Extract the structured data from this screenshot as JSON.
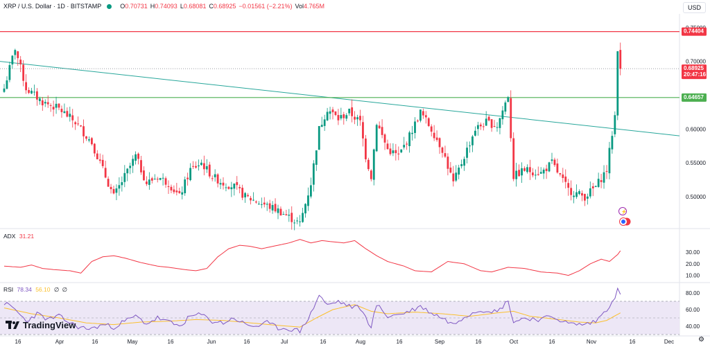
{
  "header": {
    "symbol": "XRP / U.S. Dollar · 1D · BITSTAMP",
    "open_label": "O",
    "open": "0.70731",
    "high_label": "H",
    "high": "0.74093",
    "low_label": "L",
    "low": "0.68081",
    "close_label": "C",
    "close": "0.68925",
    "change": "−0.01561 (−2.21%)",
    "vol_label": "Vol",
    "vol": "4.765M"
  },
  "currency": "USD",
  "colors": {
    "up": "#089981",
    "down": "#f23645",
    "resistance": "#f23645",
    "support": "#4caf50",
    "trendline": "#26a69a",
    "adx": "#f23645",
    "rsi": "#7e57c2",
    "rsi_ma": "#fbc02d",
    "rsi_band": "#ede7f6"
  },
  "chart_data": [
    {
      "type": "candlestick",
      "title": "XRP / U.S. Dollar · 1D · BITSTAMP",
      "ylim": [
        0.455,
        0.76
      ],
      "y_ticks": [
        "0.75000",
        "0.70000",
        "0.60000",
        "0.55000",
        "0.50000"
      ],
      "x_ticks": [
        "16",
        "Apr",
        "16",
        "May",
        "16",
        "Jun",
        "16",
        "Jul",
        "16",
        "Aug",
        "16",
        "Sep",
        "16",
        "Oct",
        "16",
        "Nov",
        "16",
        "Dec"
      ],
      "price_labels": {
        "resistance": "0.74404",
        "current": "0.68925",
        "countdown": "20:47:16",
        "support": "0.64657"
      },
      "levels": {
        "resistance": 0.74404,
        "support": 0.64657,
        "current": 0.68925
      },
      "trendline": {
        "start": 0.7,
        "end": 0.59
      },
      "anchor_points": [
        [
          0,
          0.66
        ],
        [
          4,
          0.72
        ],
        [
          8,
          0.66
        ],
        [
          14,
          0.64
        ],
        [
          20,
          0.63
        ],
        [
          26,
          0.61
        ],
        [
          32,
          0.58
        ],
        [
          36,
          0.54
        ],
        [
          40,
          0.5
        ],
        [
          44,
          0.53
        ],
        [
          48,
          0.56
        ],
        [
          52,
          0.52
        ],
        [
          56,
          0.53
        ],
        [
          60,
          0.52
        ],
        [
          64,
          0.5
        ],
        [
          68,
          0.54
        ],
        [
          72,
          0.55
        ],
        [
          76,
          0.53
        ],
        [
          80,
          0.52
        ],
        [
          84,
          0.515
        ],
        [
          88,
          0.5
        ],
        [
          94,
          0.49
        ],
        [
          100,
          0.48
        ],
        [
          104,
          0.47
        ],
        [
          108,
          0.46
        ],
        [
          112,
          0.52
        ],
        [
          115,
          0.6
        ],
        [
          118,
          0.63
        ],
        [
          122,
          0.615
        ],
        [
          126,
          0.625
        ],
        [
          130,
          0.61
        ],
        [
          132,
          0.56
        ],
        [
          134,
          0.53
        ],
        [
          136,
          0.61
        ],
        [
          140,
          0.57
        ],
        [
          144,
          0.56
        ],
        [
          148,
          0.59
        ],
        [
          152,
          0.625
        ],
        [
          156,
          0.6
        ],
        [
          160,
          0.57
        ],
        [
          164,
          0.52
        ],
        [
          168,
          0.56
        ],
        [
          172,
          0.6
        ],
        [
          176,
          0.61
        ],
        [
          180,
          0.605
        ],
        [
          184,
          0.65
        ],
        [
          186,
          0.53
        ],
        [
          190,
          0.54
        ],
        [
          196,
          0.535
        ],
        [
          200,
          0.55
        ],
        [
          206,
          0.51
        ],
        [
          212,
          0.5
        ],
        [
          216,
          0.515
        ],
        [
          220,
          0.54
        ],
        [
          223,
          0.62
        ],
        [
          224,
          0.72
        ],
        [
          225,
          0.689
        ]
      ]
    },
    {
      "type": "line",
      "title": "ADX",
      "label": "ADX",
      "value": "31.21",
      "ylim": [
        5,
        48
      ],
      "y_ticks": [
        "30.00",
        "20.00",
        "10.00"
      ],
      "anchor_points": [
        [
          0,
          18
        ],
        [
          6,
          17
        ],
        [
          10,
          19
        ],
        [
          14,
          16
        ],
        [
          18,
          15
        ],
        [
          24,
          14
        ],
        [
          28,
          12
        ],
        [
          32,
          22
        ],
        [
          36,
          26
        ],
        [
          40,
          27
        ],
        [
          44,
          25
        ],
        [
          50,
          21
        ],
        [
          56,
          18
        ],
        [
          60,
          17
        ],
        [
          66,
          15
        ],
        [
          70,
          14
        ],
        [
          74,
          16
        ],
        [
          78,
          26
        ],
        [
          82,
          33
        ],
        [
          86,
          36
        ],
        [
          90,
          35
        ],
        [
          94,
          33
        ],
        [
          98,
          35
        ],
        [
          104,
          38
        ],
        [
          108,
          41
        ],
        [
          112,
          38
        ],
        [
          116,
          40
        ],
        [
          120,
          39
        ],
        [
          124,
          38
        ],
        [
          128,
          40
        ],
        [
          132,
          33
        ],
        [
          136,
          27
        ],
        [
          140,
          22
        ],
        [
          146,
          18
        ],
        [
          150,
          14
        ],
        [
          156,
          13
        ],
        [
          162,
          22
        ],
        [
          168,
          20
        ],
        [
          174,
          14
        ],
        [
          178,
          13
        ],
        [
          184,
          17
        ],
        [
          190,
          16
        ],
        [
          196,
          13
        ],
        [
          202,
          12
        ],
        [
          206,
          10
        ],
        [
          210,
          14
        ],
        [
          214,
          20
        ],
        [
          218,
          24
        ],
        [
          221,
          22
        ],
        [
          224,
          28
        ],
        [
          225,
          31.21
        ]
      ]
    },
    {
      "type": "line",
      "title": "RSI",
      "label": "RSI",
      "value": "78.34",
      "ma_value": "56.10",
      "ma_extra": "∅",
      "extra": "∅",
      "ylim": [
        30,
        90
      ],
      "band": [
        30,
        70
      ],
      "y_ticks": [
        "80.00",
        "60.00",
        "40.00"
      ],
      "series": [
        {
          "name": "RSI",
          "anchor_points": [
            [
              0,
              68
            ],
            [
              4,
              60
            ],
            [
              8,
              46
            ],
            [
              12,
              55
            ],
            [
              16,
              48
            ],
            [
              20,
              52
            ],
            [
              24,
              44
            ],
            [
              28,
              38
            ],
            [
              32,
              37
            ],
            [
              36,
              42
            ],
            [
              40,
              39
            ],
            [
              44,
              46
            ],
            [
              48,
              52
            ],
            [
              52,
              43
            ],
            [
              56,
              50
            ],
            [
              60,
              45
            ],
            [
              64,
              40
            ],
            [
              68,
              52
            ],
            [
              72,
              54
            ],
            [
              76,
              46
            ],
            [
              80,
              44
            ],
            [
              84,
              50
            ],
            [
              88,
              42
            ],
            [
              92,
              40
            ],
            [
              96,
              44
            ],
            [
              100,
              38
            ],
            [
              104,
              37
            ],
            [
              108,
              34
            ],
            [
              112,
              55
            ],
            [
              115,
              78
            ],
            [
              118,
              65
            ],
            [
              122,
              70
            ],
            [
              126,
              64
            ],
            [
              130,
              62
            ],
            [
              132,
              50
            ],
            [
              134,
              40
            ],
            [
              136,
              66
            ],
            [
              140,
              52
            ],
            [
              144,
              54
            ],
            [
              148,
              58
            ],
            [
              152,
              64
            ],
            [
              156,
              56
            ],
            [
              160,
              50
            ],
            [
              164,
              42
            ],
            [
              168,
              52
            ],
            [
              172,
              58
            ],
            [
              176,
              60
            ],
            [
              180,
              57
            ],
            [
              184,
              71
            ],
            [
              186,
              45
            ],
            [
              190,
              50
            ],
            [
              196,
              48
            ],
            [
              200,
              52
            ],
            [
              206,
              43
            ],
            [
              212,
              42
            ],
            [
              216,
              46
            ],
            [
              220,
              60
            ],
            [
              223,
              76
            ],
            [
              224,
              84
            ],
            [
              225,
              78.34
            ]
          ]
        },
        {
          "name": "RSI MA",
          "anchor_points": [
            [
              0,
              62
            ],
            [
              10,
              55
            ],
            [
              20,
              50
            ],
            [
              30,
              44
            ],
            [
              40,
              42
            ],
            [
              50,
              45
            ],
            [
              60,
              46
            ],
            [
              70,
              48
            ],
            [
              80,
              47
            ],
            [
              90,
              44
            ],
            [
              100,
              41
            ],
            [
              108,
              39
            ],
            [
              114,
              50
            ],
            [
              120,
              60
            ],
            [
              128,
              66
            ],
            [
              134,
              58
            ],
            [
              140,
              55
            ],
            [
              150,
              57
            ],
            [
              160,
              55
            ],
            [
              170,
              52
            ],
            [
              180,
              56
            ],
            [
              186,
              58
            ],
            [
              192,
              52
            ],
            [
              200,
              49
            ],
            [
              210,
              45
            ],
            [
              216,
              44
            ],
            [
              220,
              47
            ],
            [
              225,
              56.1
            ]
          ]
        }
      ]
    }
  ],
  "branding": {
    "logo_text": "TradingView"
  }
}
